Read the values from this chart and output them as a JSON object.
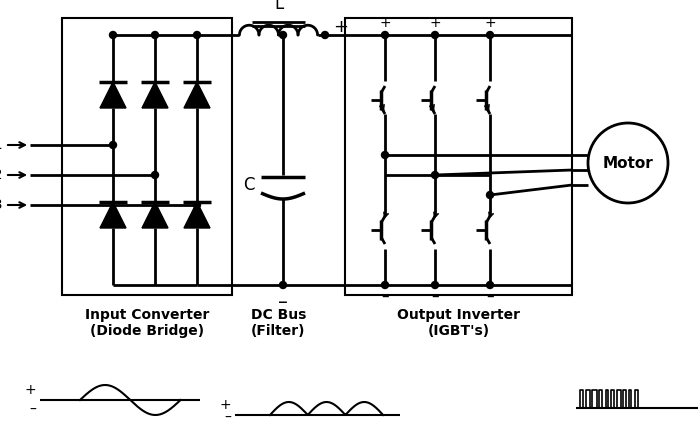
{
  "background": "#ffffff",
  "box1_label": "Input Converter\n(Diode Bridge)",
  "box2_label": "DC Bus\n(Filter)",
  "box3_label": "Output Inverter\n(IGBT's)",
  "motor_label": "Motor",
  "figsize": [
    7.0,
    4.26
  ],
  "dpi": 100
}
